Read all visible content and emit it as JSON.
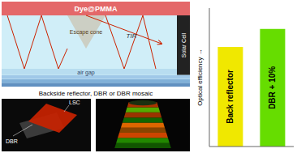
{
  "chart_data": {
    "type": "bar",
    "categories": [
      "Back reflector",
      "DBR + 10%"
    ],
    "values": [
      72,
      85
    ],
    "colors": [
      "#f0e800",
      "#66dd00"
    ],
    "ylabel": "Optical efficiency →",
    "ylim": [
      0,
      100
    ],
    "yticks": [],
    "tick_labels": false,
    "grid": false,
    "annotations": [
      "Dye@PMMA",
      "air gap",
      "Escape cone",
      "TIR",
      "Solar Cell",
      "Backside reflector, DBR or DBR mosaic",
      "LSC",
      "DBR"
    ]
  }
}
